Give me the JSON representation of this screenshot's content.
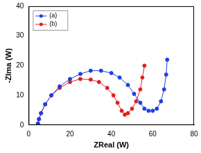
{
  "chart_data": {
    "type": "line",
    "x_label": "ZReal (W)",
    "y_label": "-ZIma (W)",
    "xlim": [
      0,
      80
    ],
    "xticks": [
      0,
      20,
      40,
      60,
      80
    ],
    "ylim": [
      0,
      40
    ],
    "yticks": [
      0,
      10,
      20,
      30,
      40
    ],
    "grid": false,
    "legend": "upper left",
    "series": [
      {
        "name": "(a)",
        "color": "#1f3fe0",
        "marker": "circle",
        "line_style": "solid",
        "x": [
          4.5,
          5,
          6,
          8,
          11,
          15,
          20,
          25,
          30,
          35,
          40,
          44,
          48,
          51,
          54,
          56,
          58,
          60,
          62,
          64,
          65.5,
          66.5,
          67
        ],
        "values": [
          0.5,
          2,
          4,
          7,
          10,
          13,
          15.5,
          17.2,
          18.3,
          18.3,
          17.5,
          16,
          13.5,
          10.5,
          7.5,
          5.5,
          4.8,
          4.8,
          5.5,
          8,
          12,
          17,
          22
        ]
      },
      {
        "name": "(b)",
        "color": "#e02020",
        "marker": "circle",
        "line_style": "solid",
        "x": [
          4.5,
          5,
          6,
          8,
          11,
          15,
          20,
          25,
          30,
          34,
          38,
          41,
          43,
          45,
          46.5,
          48,
          50,
          52,
          54,
          55,
          56
        ],
        "values": [
          0.5,
          2,
          4,
          7,
          10,
          12.5,
          14.5,
          15.5,
          15.3,
          14.5,
          12.5,
          10,
          7.5,
          4.8,
          3.5,
          4,
          5.5,
          8,
          12,
          16,
          20
        ]
      }
    ]
  }
}
